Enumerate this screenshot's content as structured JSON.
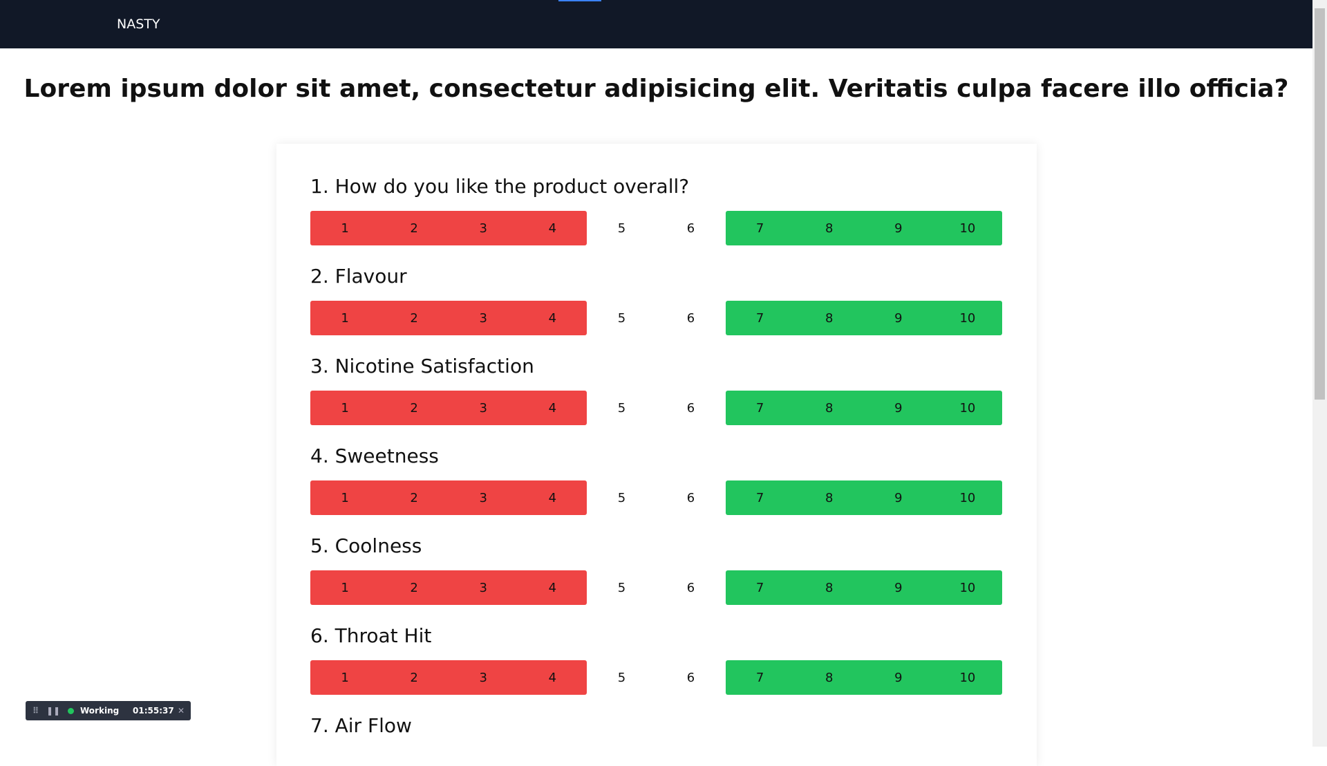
{
  "nav": {
    "brand": "NASTY"
  },
  "header": {
    "title": "Lorem ipsum dolor sit amet, consectetur adipisicing elit. Veritatis culpa facere illo officia?"
  },
  "scale": [
    1,
    2,
    3,
    4,
    5,
    6,
    7,
    8,
    9,
    10
  ],
  "questions": [
    {
      "label": "1. How do you like the product overall?",
      "rated": true
    },
    {
      "label": "2. Flavour",
      "rated": true
    },
    {
      "label": "3. Nicotine Satisfaction",
      "rated": true
    },
    {
      "label": "4. Sweetness",
      "rated": true
    },
    {
      "label": "5. Coolness",
      "rated": true
    },
    {
      "label": "6. Throat Hit",
      "rated": true
    },
    {
      "label": "7. Air Flow",
      "rated": false
    }
  ],
  "widget": {
    "status": "Working",
    "time": "01:55:37"
  }
}
